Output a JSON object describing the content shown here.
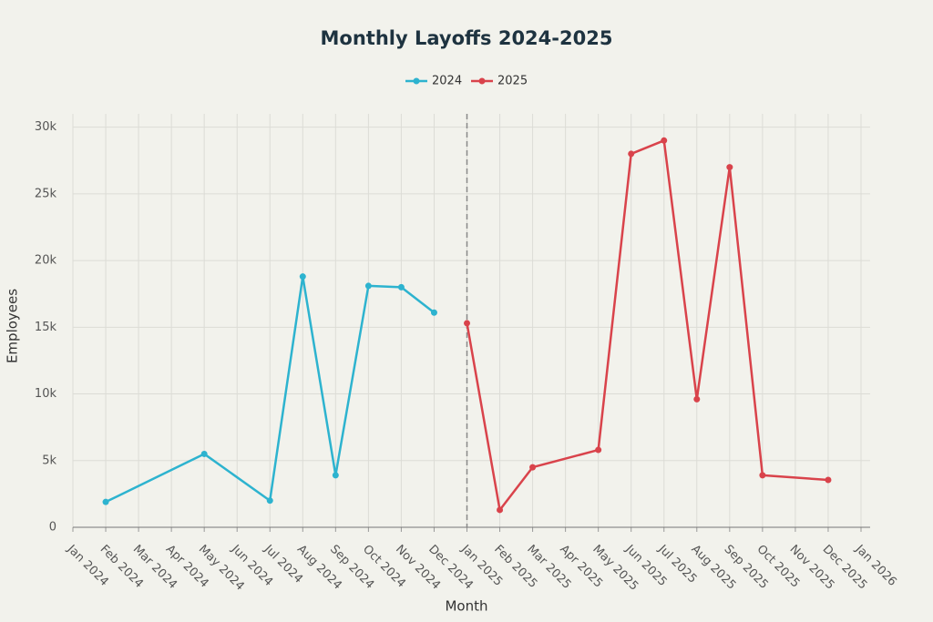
{
  "chart_data": {
    "type": "line",
    "title": "Monthly Layoffs 2024-2025",
    "x_label": "Month",
    "y_label": "Employees",
    "series": [
      {
        "name": "2024",
        "color": "#2db3cf",
        "x": [
          "2024-02",
          "2024-05",
          "2024-07",
          "2024-08",
          "2024-09",
          "2024-10",
          "2024-11",
          "2024-12"
        ],
        "values": [
          1900,
          5500,
          2000,
          18800,
          3900,
          18100,
          18000,
          16100
        ]
      },
      {
        "name": "2025",
        "color": "#d9434b",
        "x": [
          "2025-01",
          "2025-02",
          "2025-03",
          "2025-05",
          "2025-06",
          "2025-07",
          "2025-08",
          "2025-09",
          "2025-10",
          "2025-12"
        ],
        "values": [
          15300,
          1300,
          4500,
          5800,
          28000,
          29000,
          9600,
          27000,
          3900,
          3550
        ]
      }
    ],
    "xlim": [
      "2024-01",
      "2026-01"
    ],
    "xticks": [
      {
        "value": "2024-01",
        "label": "Jan 2024"
      },
      {
        "value": "2024-02",
        "label": "Feb 2024"
      },
      {
        "value": "2024-03",
        "label": "Mar 2024"
      },
      {
        "value": "2024-04",
        "label": "Apr 2024"
      },
      {
        "value": "2024-05",
        "label": "May 2024"
      },
      {
        "value": "2024-06",
        "label": "Jun 2024"
      },
      {
        "value": "2024-07",
        "label": "Jul 2024"
      },
      {
        "value": "2024-08",
        "label": "Aug 2024"
      },
      {
        "value": "2024-09",
        "label": "Sep 2024"
      },
      {
        "value": "2024-10",
        "label": "Oct 2024"
      },
      {
        "value": "2024-11",
        "label": "Nov 2024"
      },
      {
        "value": "2024-12",
        "label": "Dec 2024"
      },
      {
        "value": "2025-01",
        "label": "Jan 2025"
      },
      {
        "value": "2025-02",
        "label": "Feb 2025"
      },
      {
        "value": "2025-03",
        "label": "Mar 2025"
      },
      {
        "value": "2025-04",
        "label": "Apr 2025"
      },
      {
        "value": "2025-05",
        "label": "May 2025"
      },
      {
        "value": "2025-06",
        "label": "Jun 2025"
      },
      {
        "value": "2025-07",
        "label": "Jul 2025"
      },
      {
        "value": "2025-08",
        "label": "Aug 2025"
      },
      {
        "value": "2025-09",
        "label": "Sep 2025"
      },
      {
        "value": "2025-10",
        "label": "Oct 2025"
      },
      {
        "value": "2025-11",
        "label": "Nov 2025"
      },
      {
        "value": "2025-12",
        "label": "Dec 2025"
      },
      {
        "value": "2026-01",
        "label": "Jan 2026"
      }
    ],
    "ylim": [
      0,
      31000
    ],
    "yticks": [
      0,
      {
        "value": 5000,
        "label": "5k"
      },
      {
        "value": 10000,
        "label": "10k"
      },
      {
        "value": 15000,
        "label": "15k"
      },
      {
        "value": 20000,
        "label": "20k"
      },
      {
        "value": 25000,
        "label": "25k"
      },
      {
        "value": 30000,
        "label": "30k"
      }
    ],
    "divider_x": "2025-01",
    "grid": true,
    "legend": "top"
  }
}
